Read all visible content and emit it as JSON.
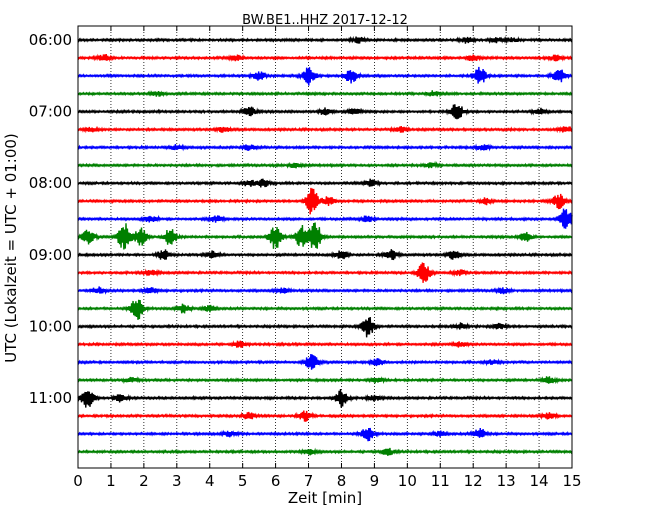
{
  "chart_data": {
    "type": "line",
    "title": "BW.BE1..HHZ 2017-12-12",
    "xlabel": "Zeit  [min]",
    "ylabel": "UTC (Lokalzeit = UTC + 01:00)",
    "xlim": [
      0,
      15
    ],
    "x_ticks": [
      "0",
      "1",
      "2",
      "3",
      "4",
      "5",
      "6",
      "7",
      "8",
      "9",
      "10",
      "11",
      "12",
      "13",
      "14",
      "15"
    ],
    "y_tick_labels": [
      "06:00",
      "07:00",
      "08:00",
      "09:00",
      "10:00",
      "11:00"
    ],
    "grid": "vertical dotted",
    "trace_colors": [
      "#000000",
      "#ff0000",
      "#0000ff",
      "#008000"
    ],
    "trace_start_times": [
      "06:00",
      "06:15",
      "06:30",
      "06:45",
      "07:00",
      "07:15",
      "07:30",
      "07:45",
      "08:00",
      "08:15",
      "08:30",
      "08:45",
      "09:00",
      "09:15",
      "09:30",
      "09:45",
      "10:00",
      "10:15",
      "10:30",
      "10:45",
      "11:00",
      "11:15",
      "11:30",
      "11:45"
    ],
    "events": [
      [
        [
          8.5,
          0.4
        ],
        [
          11.8,
          0.35
        ],
        [
          12.7,
          0.3
        ],
        [
          13.2,
          0.25
        ]
      ],
      [
        [
          0.8,
          0.4
        ],
        [
          4.8,
          0.3
        ],
        [
          12.0,
          0.35
        ],
        [
          14.5,
          0.3
        ]
      ],
      [
        [
          5.5,
          0.5
        ],
        [
          7.0,
          1.0
        ],
        [
          8.3,
          0.8
        ],
        [
          12.2,
          1.0
        ],
        [
          14.6,
          0.8
        ]
      ],
      [
        [
          2.4,
          0.25
        ],
        [
          10.8,
          0.3
        ]
      ],
      [
        [
          5.2,
          0.6
        ],
        [
          7.5,
          0.4
        ],
        [
          8.4,
          0.3
        ],
        [
          11.5,
          1.0
        ],
        [
          14.0,
          0.35
        ]
      ],
      [
        [
          0.4,
          0.25
        ],
        [
          4.4,
          0.3
        ],
        [
          9.8,
          0.3
        ],
        [
          14.8,
          0.35
        ]
      ],
      [
        [
          3.0,
          0.3
        ],
        [
          5.2,
          0.35
        ],
        [
          12.3,
          0.35
        ]
      ],
      [
        [
          6.6,
          0.3
        ],
        [
          10.7,
          0.25
        ]
      ],
      [
        [
          5.2,
          0.35
        ],
        [
          5.6,
          0.45
        ],
        [
          8.9,
          0.4
        ]
      ],
      [
        [
          7.1,
          1.5
        ],
        [
          7.6,
          0.5
        ],
        [
          12.4,
          0.35
        ],
        [
          14.6,
          0.8
        ]
      ],
      [
        [
          2.2,
          0.4
        ],
        [
          4.2,
          0.35
        ],
        [
          8.8,
          0.35
        ],
        [
          14.8,
          1.3
        ]
      ],
      [
        [
          0.3,
          0.8
        ],
        [
          1.4,
          1.6
        ],
        [
          1.9,
          1.0
        ],
        [
          2.8,
          1.0
        ],
        [
          6.0,
          1.5
        ],
        [
          6.8,
          1.4
        ],
        [
          7.2,
          1.7
        ],
        [
          13.6,
          0.5
        ]
      ],
      [
        [
          2.6,
          0.6
        ],
        [
          4.1,
          0.4
        ],
        [
          8.0,
          0.5
        ],
        [
          9.5,
          0.6
        ],
        [
          11.4,
          0.5
        ]
      ],
      [
        [
          2.2,
          0.3
        ],
        [
          10.5,
          1.2
        ],
        [
          11.6,
          0.3
        ]
      ],
      [
        [
          0.6,
          0.4
        ],
        [
          2.2,
          0.4
        ],
        [
          6.2,
          0.3
        ],
        [
          12.9,
          0.3
        ]
      ],
      [
        [
          1.8,
          1.3
        ],
        [
          3.2,
          0.5
        ],
        [
          4.0,
          0.35
        ]
      ],
      [
        [
          8.8,
          1.2
        ],
        [
          11.6,
          0.35
        ],
        [
          12.8,
          0.35
        ]
      ],
      [
        [
          4.9,
          0.35
        ],
        [
          11.6,
          0.3
        ]
      ],
      [
        [
          7.1,
          0.9
        ],
        [
          9.1,
          0.4
        ],
        [
          12.6,
          0.3
        ]
      ],
      [
        [
          1.6,
          0.3
        ],
        [
          9.1,
          0.35
        ],
        [
          14.3,
          0.4
        ]
      ],
      [
        [
          0.3,
          1.3
        ],
        [
          1.3,
          0.45
        ],
        [
          8.0,
          1.0
        ],
        [
          9.0,
          0.3
        ]
      ],
      [
        [
          5.2,
          0.4
        ],
        [
          6.9,
          0.6
        ],
        [
          14.3,
          0.35
        ]
      ],
      [
        [
          4.6,
          0.3
        ],
        [
          8.8,
          0.8
        ],
        [
          11.0,
          0.3
        ],
        [
          12.2,
          0.6
        ]
      ],
      [
        [
          7.0,
          0.35
        ],
        [
          9.4,
          0.4
        ]
      ]
    ]
  }
}
